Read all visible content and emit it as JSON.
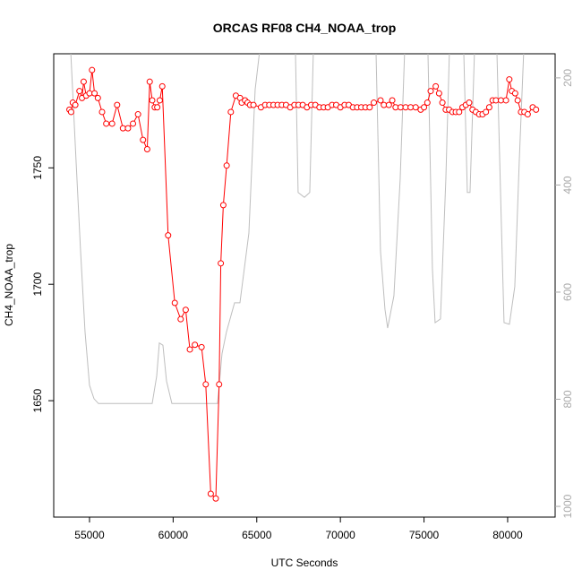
{
  "chart_data": {
    "type": "line",
    "title": "ORCAS RF08 CH4_NOAA_trop",
    "x_label": "UTC Seconds",
    "y_label": "CH4_NOAA_trop",
    "xlim": [
      52860,
      82840
    ],
    "xticks": [
      55000,
      60000,
      65000,
      70000,
      75000,
      80000
    ],
    "ylim": [
      1600,
      1799
    ],
    "yticks": [
      1650,
      1700,
      1750
    ],
    "y2lim": [
      1020,
      155
    ],
    "y2ticks": [
      200,
      400,
      600,
      800,
      1000
    ],
    "y2tick_color": "#aaaaaa",
    "series": [
      {
        "color": "#ff0000",
        "marker": "circle",
        "x": [
          53800,
          53900,
          54000,
          54150,
          54400,
          54550,
          54650,
          54800,
          55000,
          55150,
          55300,
          55500,
          55750,
          56000,
          56350,
          56650,
          57000,
          57300,
          57600,
          57900,
          58200,
          58450,
          58600,
          58750,
          58900,
          59050,
          59200,
          59350,
          59700,
          60100,
          60450,
          60750,
          61000,
          61300,
          61700,
          61950,
          62250,
          62550,
          62750,
          62850,
          63000,
          63200,
          63450,
          63750,
          64000,
          64100,
          64300,
          64450,
          64600,
          64800,
          65250,
          65500,
          65750,
          66000,
          66250,
          66500,
          66750,
          67000,
          67250,
          67500,
          67750,
          68000,
          68250,
          68500,
          68750,
          69000,
          69250,
          69500,
          69750,
          70000,
          70250,
          70500,
          70750,
          71000,
          71250,
          71500,
          71750,
          72000,
          72400,
          72600,
          72900,
          73100,
          73300,
          73600,
          73900,
          74200,
          74500,
          74800,
          75000,
          75200,
          75400,
          75700,
          75900,
          76100,
          76300,
          76500,
          76700,
          76900,
          77100,
          77300,
          77500,
          77700,
          77900,
          78100,
          78300,
          78500,
          78700,
          78900,
          79100,
          79300,
          79600,
          79900,
          80100,
          80250,
          80450,
          80600,
          80800,
          81000,
          81200,
          81500,
          81700
        ],
        "values": [
          1775,
          1774,
          1778,
          1777,
          1783,
          1780,
          1787,
          1781,
          1782,
          1792,
          1782,
          1780,
          1774,
          1769,
          1769,
          1777,
          1767,
          1767,
          1769,
          1773,
          1762,
          1758,
          1787,
          1779,
          1776,
          1776,
          1779,
          1785,
          1721,
          1692,
          1685,
          1689,
          1672,
          1674,
          1673,
          1657,
          1610,
          1608,
          1657,
          1709,
          1734,
          1751,
          1774,
          1781,
          1780,
          1778,
          1779,
          1778,
          1777,
          1777,
          1776,
          1777,
          1777,
          1777,
          1777,
          1777,
          1777,
          1776,
          1777,
          1777,
          1777,
          1776,
          1777,
          1777,
          1776,
          1776,
          1776,
          1777,
          1777,
          1776,
          1777,
          1777,
          1776,
          1776,
          1776,
          1776,
          1776,
          1778,
          1779,
          1777,
          1777,
          1779,
          1776,
          1776,
          1776,
          1776,
          1776,
          1775,
          1776,
          1778,
          1783,
          1785,
          1782,
          1778,
          1775,
          1775,
          1774,
          1774,
          1774,
          1776,
          1777,
          1778,
          1775,
          1774,
          1773,
          1773,
          1774,
          1776,
          1779,
          1779,
          1779,
          1779,
          1788,
          1783,
          1782,
          1779,
          1774,
          1774,
          1773,
          1776,
          1775
        ]
      },
      {
        "color": "#bebebe",
        "axis": "y2",
        "x": [
          53876,
          54197,
          54465,
          54732,
          55000,
          55268,
          55535,
          58747,
          59015,
          59175,
          59389,
          59604,
          59925,
          62655,
          62922,
          63190,
          63672,
          63993,
          64528,
          64903,
          65171,
          67312,
          67472,
          67847,
          68168,
          68383,
          72130,
          72397,
          72665,
          72825,
          73200,
          73575,
          73842,
          75234,
          75502,
          75663,
          75984,
          76305,
          76519,
          77376,
          77590,
          77751,
          78019,
          79357,
          79625,
          79785,
          80106,
          80427,
          80694,
          80962
        ],
        "values": [
          150,
          356,
          523,
          674,
          774,
          799,
          808,
          808,
          757,
          695,
          699,
          766,
          808,
          808,
          715,
          674,
          620,
          620,
          490,
          222,
          150,
          150,
          414,
          423,
          414,
          150,
          150,
          523,
          632,
          667,
          607,
          389,
          150,
          150,
          556,
          657,
          650,
          389,
          150,
          150,
          414,
          414,
          150,
          150,
          473,
          657,
          660,
          590,
          356,
          150
        ]
      }
    ]
  }
}
